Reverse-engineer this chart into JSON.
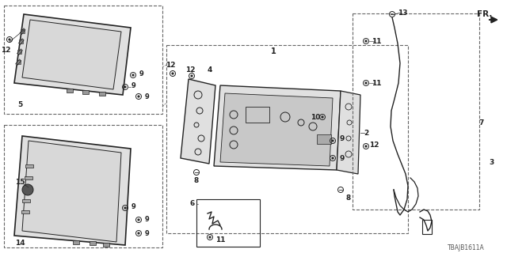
{
  "bg_color": "#ffffff",
  "diagram_code": "TBAJB1611A",
  "line_color": "#222222",
  "gray_fill": "#cccccc",
  "light_gray": "#e0e0e0",
  "dashed_color": "#666666"
}
